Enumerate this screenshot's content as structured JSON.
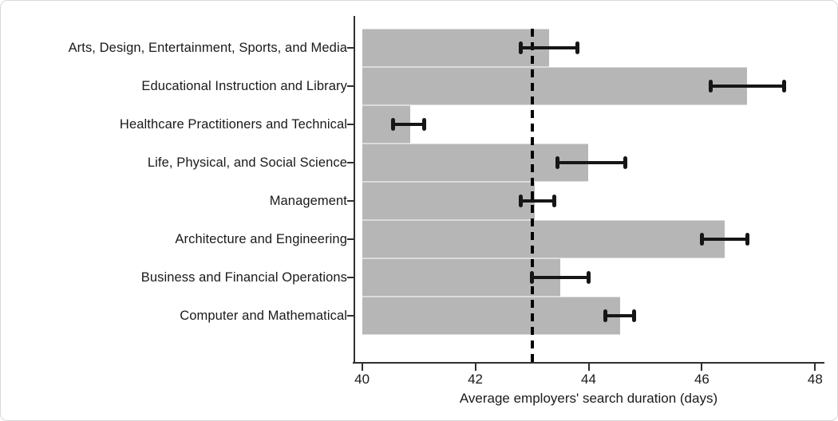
{
  "chart_data": {
    "type": "bar",
    "orientation": "horizontal",
    "xlabel": "Average employers' search duration (days)",
    "xlim": [
      39.85,
      48.15
    ],
    "xticks": [
      40,
      42,
      44,
      46,
      48
    ],
    "bar_base": 40,
    "reference_line": 43,
    "gridlines": false,
    "legend": null,
    "categories": [
      "Arts, Design, Entertainment, Sports, and Media",
      "Educational Instruction and Library",
      "Healthcare Practitioners and Technical",
      "Life, Physical, and Social Science",
      "Management",
      "Architecture and Engineering",
      "Business and Financial Operations",
      "Computer and Mathematical"
    ],
    "series": [
      {
        "name": "Average employers' search duration",
        "values": [
          43.3,
          46.8,
          40.85,
          44.0,
          43.05,
          46.4,
          43.5,
          44.55
        ],
        "ci_low": [
          42.8,
          46.15,
          40.55,
          43.45,
          42.8,
          46.0,
          43.0,
          44.3
        ],
        "ci_high": [
          43.8,
          47.45,
          41.1,
          44.65,
          43.4,
          46.8,
          44.0,
          44.8
        ]
      }
    ],
    "colors": {
      "bar_fill": "#b6b6b6",
      "error_bar": "#161616",
      "reference_line": "#000000",
      "axis": "#2f2f2f",
      "text": "#1a1a1a"
    }
  }
}
